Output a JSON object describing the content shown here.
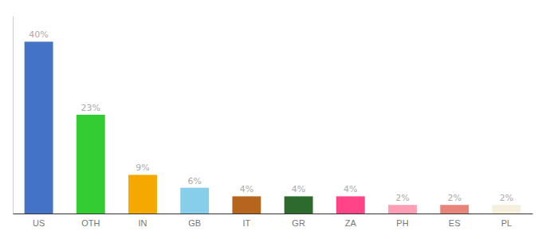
{
  "chart_data": {
    "type": "bar",
    "categories": [
      "US",
      "OTH",
      "IN",
      "GB",
      "IT",
      "GR",
      "ZA",
      "PH",
      "ES",
      "PL"
    ],
    "values": [
      40,
      23,
      9,
      6,
      4,
      4,
      4,
      2,
      2,
      2
    ],
    "value_labels": [
      "40%",
      "23%",
      "9%",
      "6%",
      "4%",
      "4%",
      "4%",
      "2%",
      "2%",
      "2%"
    ],
    "colors": [
      "#4472c4",
      "#33cc33",
      "#f5a800",
      "#87ceeb",
      "#b5651d",
      "#2d6a2d",
      "#ff4488",
      "#ff9eb5",
      "#e8857a",
      "#f5f0dc"
    ],
    "ylim": [
      0,
      46
    ],
    "yticks": [],
    "data_labels": true,
    "tick_labels": "x",
    "grid": false
  }
}
